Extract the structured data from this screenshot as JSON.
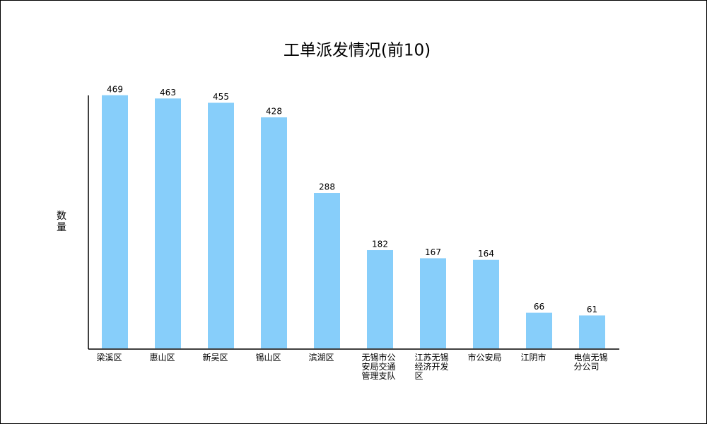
{
  "chart_data": {
    "type": "bar",
    "title": "工单派发情况(前10)",
    "y_label": "数量",
    "categories": [
      "梁溪区",
      "惠山区",
      "新吴区",
      "锡山区",
      "滨湖区",
      "无锡市公安局交通管理支队",
      "江苏无锡经济开发区",
      "市公安局",
      "江阴市",
      "电信无锡分公司"
    ],
    "values": [
      469,
      463,
      455,
      428,
      288,
      182,
      167,
      164,
      66,
      61
    ],
    "color": "#87cefa",
    "ylim": [
      0,
      470
    ]
  }
}
